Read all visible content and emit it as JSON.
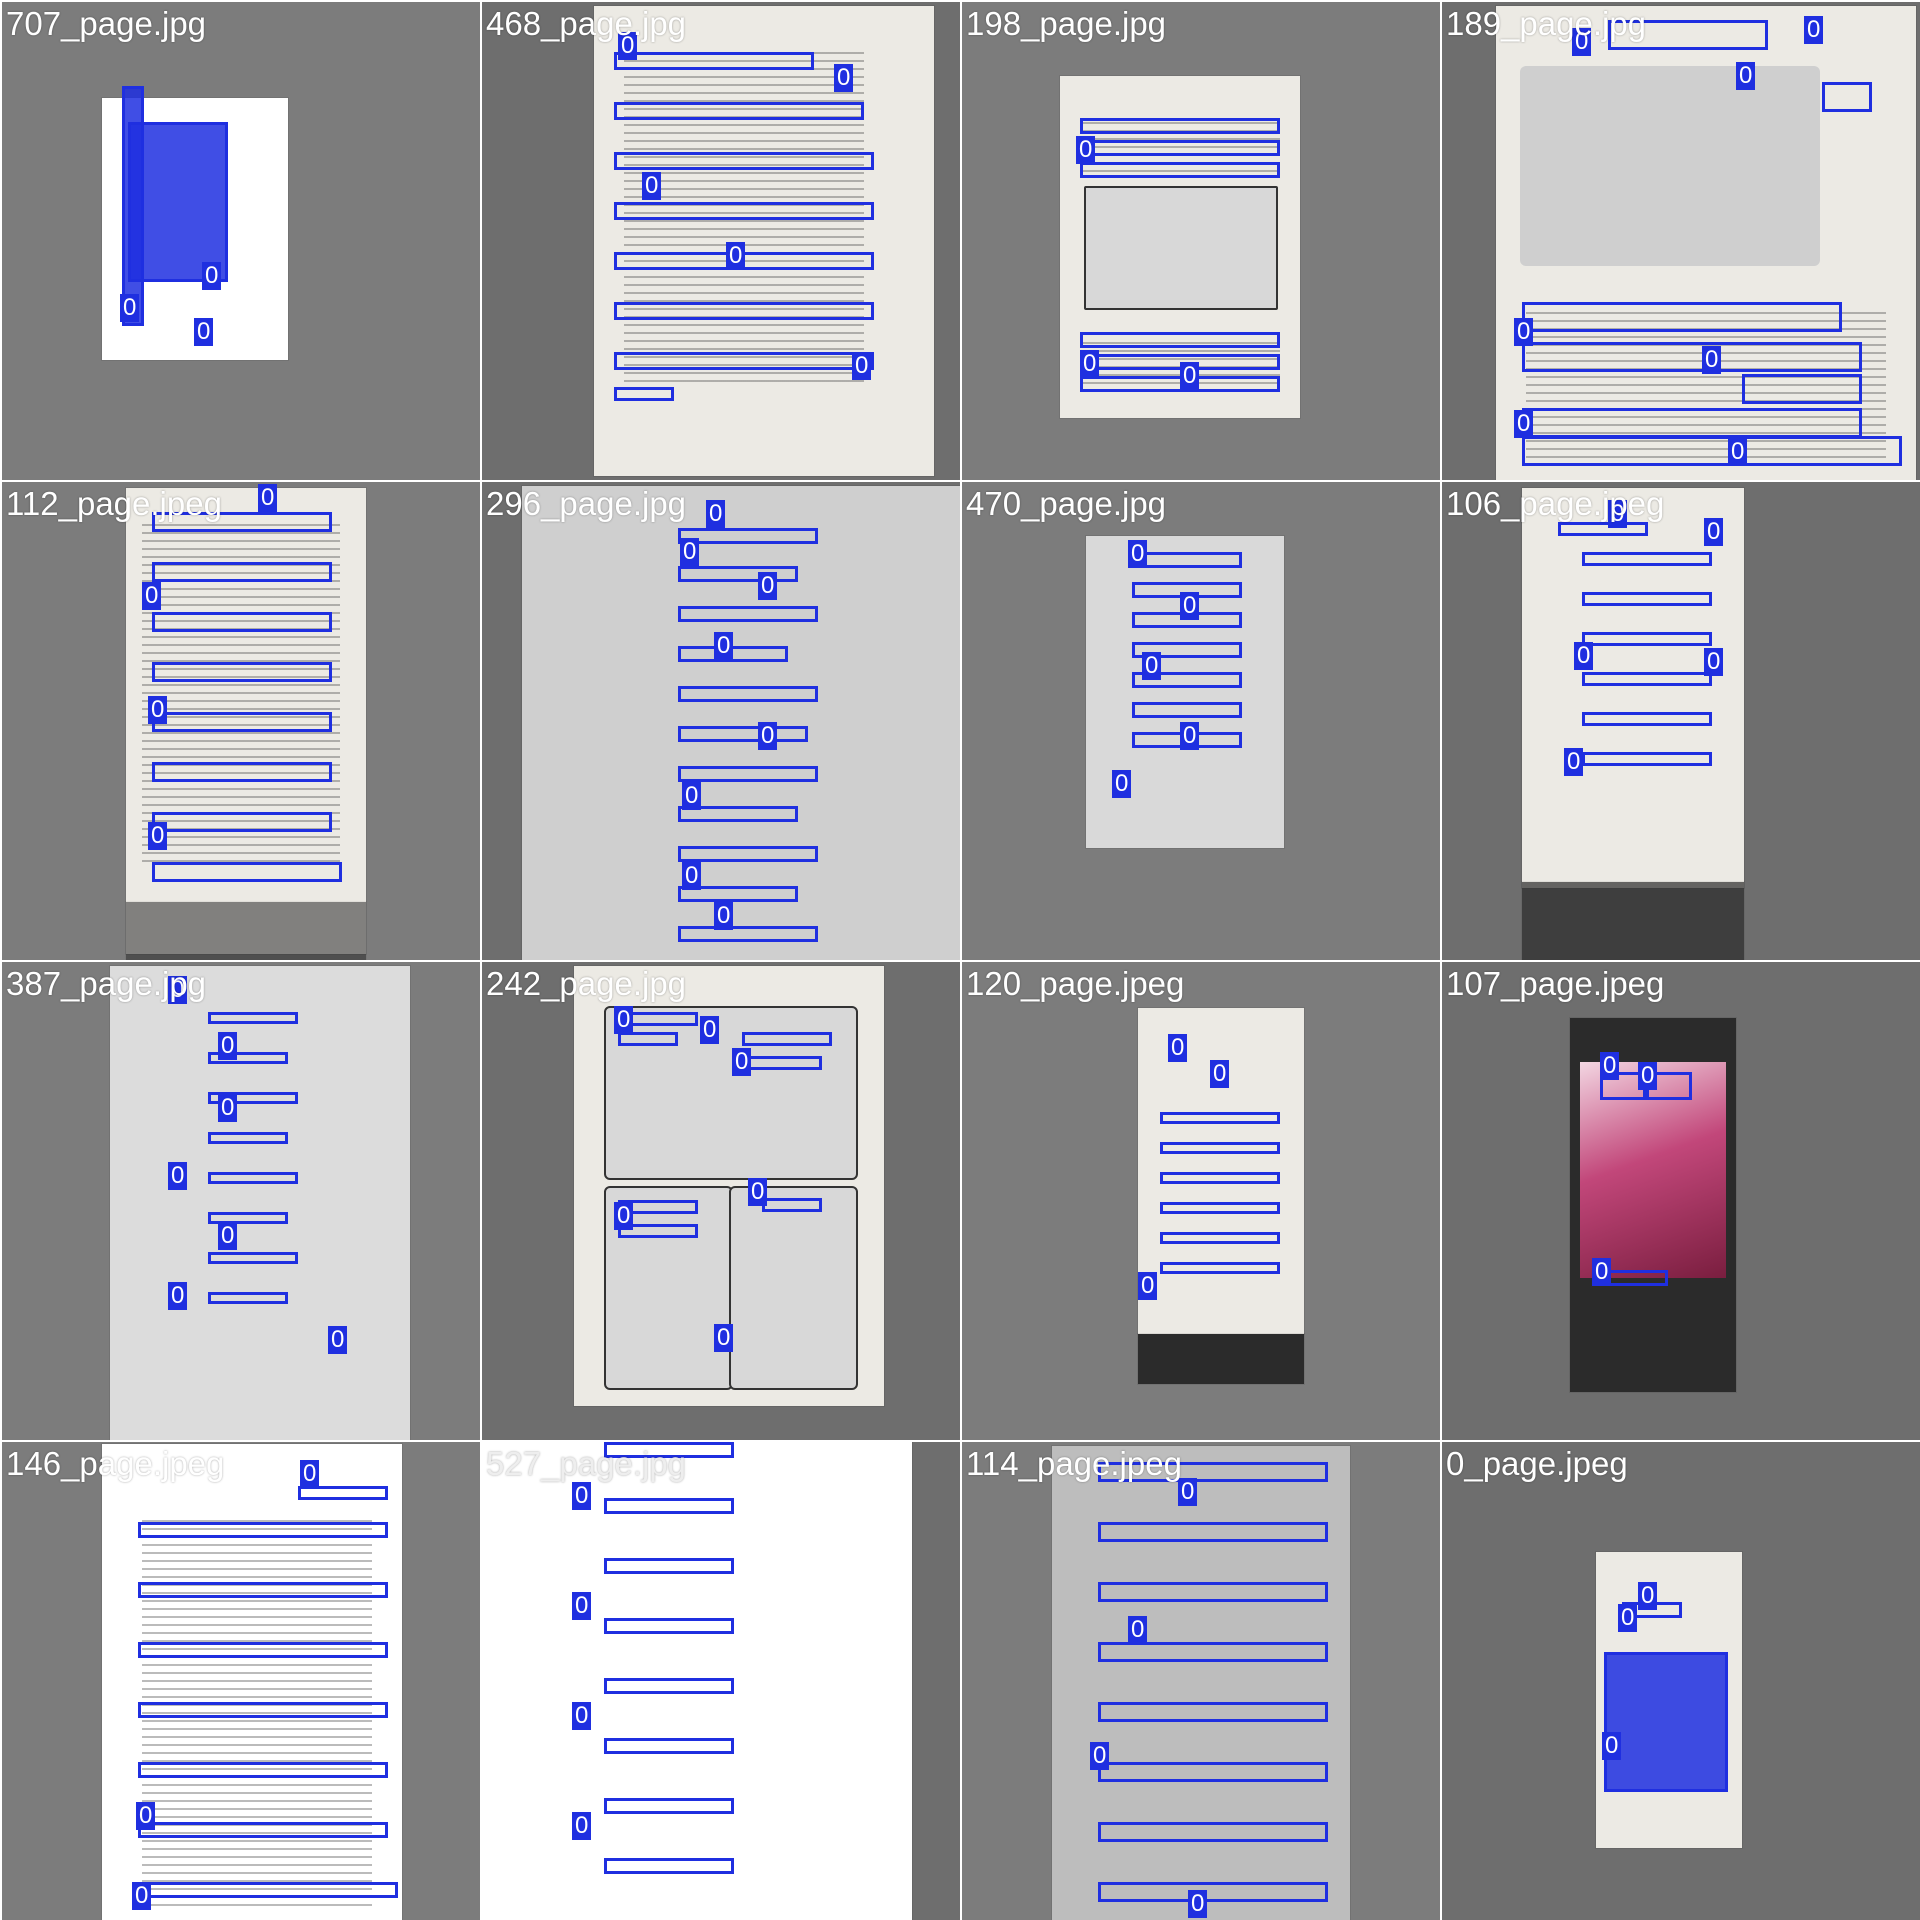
{
  "tiles": [
    {
      "title": "707_page.jpg",
      "label": "0"
    },
    {
      "title": "468_page.jpg",
      "label": "0"
    },
    {
      "title": "198_page.jpg",
      "label": "0"
    },
    {
      "title": "189_page.jpg",
      "label": "0"
    },
    {
      "title": "112_page.jpeg",
      "label": "0"
    },
    {
      "title": "296_page.jpg",
      "label": "0"
    },
    {
      "title": "470_page.jpg",
      "label": "0"
    },
    {
      "title": "106_page.jpeg",
      "label": "0"
    },
    {
      "title": "387_page.jpg",
      "label": "0"
    },
    {
      "title": "242_page.jpg",
      "label": "0"
    },
    {
      "title": "120_page.jpeg",
      "label": "0"
    },
    {
      "title": "107_page.jpeg",
      "label": "0"
    },
    {
      "title": "146_page.jpeg",
      "label": "0"
    },
    {
      "title": "527_page.jpg",
      "label": "0"
    },
    {
      "title": "114_page.jpeg",
      "label": "0"
    },
    {
      "title": "0_page.jpeg",
      "label": "0"
    }
  ],
  "colors": {
    "box_stroke": "#1f2fe0",
    "title_text": "#ffffff",
    "background": "#7a7a7a"
  }
}
